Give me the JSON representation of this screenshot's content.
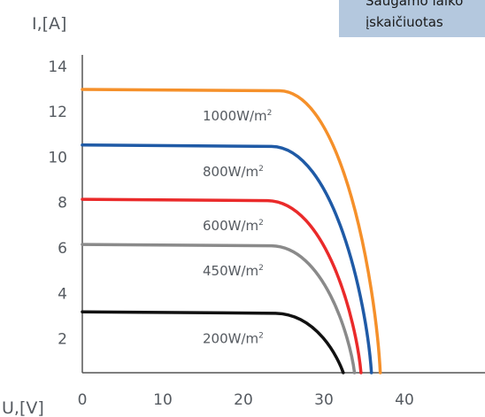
{
  "callout": {
    "line1": "Saugamo laiko",
    "line2": "įskaičiuotas"
  },
  "chart_data": {
    "type": "line",
    "ylabel": "I,[A]",
    "xlabel": "U,[V]",
    "xlim": [
      0,
      50
    ],
    "ylim": [
      0.5,
      14.5
    ],
    "xticks": [
      0,
      10,
      20,
      30,
      40
    ],
    "yticks": [
      2,
      4,
      6,
      8,
      10,
      12,
      14
    ],
    "grid": false,
    "series": [
      {
        "name": "1000W/m²",
        "label_main": "1000W/m",
        "label_sup": "2",
        "color": "#f5902a",
        "isc": 12.98,
        "vknee": 24.5,
        "voc": 37.0
      },
      {
        "name": "800W/m²",
        "label_main": "800W/m",
        "label_sup": "2",
        "color": "#1f5aa6",
        "isc": 10.53,
        "vknee": 23.5,
        "voc": 35.9
      },
      {
        "name": "600W/m²",
        "label_main": "600W/m",
        "label_sup": "2",
        "color": "#ea2a2a",
        "isc": 8.14,
        "vknee": 23.0,
        "voc": 34.6
      },
      {
        "name": "450W/m²",
        "label_main": "450W/m",
        "label_sup": "2",
        "color": "#8a8a8a",
        "isc": 6.15,
        "vknee": 23.5,
        "voc": 33.8
      },
      {
        "name": "200W/m²",
        "label_main": "200W/m",
        "label_sup": "2",
        "color": "#111111",
        "isc": 3.18,
        "vknee": 24.0,
        "voc": 32.4
      }
    ]
  }
}
